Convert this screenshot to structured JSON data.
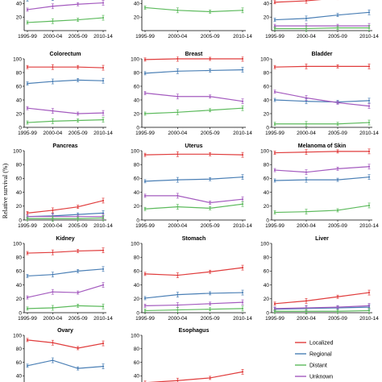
{
  "figure": {
    "ylabel": "Relative survival (%)",
    "colors": {
      "Localized": "#e03c3c",
      "Regional": "#4a7fb5",
      "Distant": "#5cba5c",
      "Unknown": "#a45bbf"
    }
  },
  "chart_data": [
    {
      "type": "line",
      "title": "",
      "categories": [
        "1995-99",
        "2000-04",
        "2005-09",
        "2010-14"
      ],
      "ylim": [
        0,
        50
      ],
      "yticks": [
        20,
        40
      ],
      "clip_top": true,
      "series": [
        {
          "name": "Regional",
          "values": [
            46,
            48,
            50,
            51
          ]
        },
        {
          "name": "Unknown",
          "values": [
            31,
            36,
            39,
            41
          ]
        },
        {
          "name": "Distant",
          "values": [
            12,
            14,
            16,
            19
          ]
        }
      ]
    },
    {
      "type": "line",
      "title": "",
      "categories": [
        "1995-99",
        "2000-04",
        "2005-09",
        "2010-14"
      ],
      "ylim": [
        0,
        50
      ],
      "yticks": [
        20,
        40
      ],
      "clip_top": true,
      "series": [
        {
          "name": "Distant",
          "values": [
            34,
            30,
            28,
            30
          ]
        }
      ]
    },
    {
      "type": "line",
      "title": "",
      "categories": [
        "1995-99",
        "2000-04",
        "2005-09",
        "2010-14"
      ],
      "ylim": [
        0,
        50
      ],
      "yticks": [
        20,
        40
      ],
      "clip_top": true,
      "series": [
        {
          "name": "Localized",
          "values": [
            42,
            44,
            48,
            53
          ]
        },
        {
          "name": "Regional",
          "values": [
            16,
            18,
            23,
            27
          ]
        },
        {
          "name": "Unknown",
          "values": [
            7,
            7,
            7,
            7
          ]
        },
        {
          "name": "Distant",
          "values": [
            3,
            3,
            4,
            4
          ]
        }
      ]
    },
    {
      "type": "line",
      "title": "Colorectum",
      "categories": [
        "1995-99",
        "2000-04",
        "2005-09",
        "2010-14"
      ],
      "ylim": [
        0,
        100
      ],
      "yticks": [
        0,
        20,
        40,
        60,
        80,
        100
      ],
      "series": [
        {
          "name": "Localized",
          "values": [
            88,
            88,
            88,
            87
          ]
        },
        {
          "name": "Regional",
          "values": [
            64,
            67,
            69,
            68
          ]
        },
        {
          "name": "Unknown",
          "values": [
            28,
            24,
            20,
            21
          ]
        },
        {
          "name": "Distant",
          "values": [
            7,
            9,
            10,
            11
          ]
        }
      ]
    },
    {
      "type": "line",
      "title": "Breast",
      "categories": [
        "1995-99",
        "2000-04",
        "2005-09",
        "2010-14"
      ],
      "ylim": [
        0,
        100
      ],
      "yticks": [
        0,
        20,
        40,
        60,
        80,
        100
      ],
      "series": [
        {
          "name": "Localized",
          "values": [
            99,
            100,
            100,
            100
          ]
        },
        {
          "name": "Regional",
          "values": [
            79,
            82,
            83,
            84
          ]
        },
        {
          "name": "Unknown",
          "values": [
            50,
            45,
            45,
            38
          ]
        },
        {
          "name": "Distant",
          "values": [
            20,
            22,
            25,
            28
          ]
        }
      ]
    },
    {
      "type": "line",
      "title": "Bladder",
      "categories": [
        "1995-99",
        "2000-04",
        "2005-09",
        "2010-14"
      ],
      "ylim": [
        0,
        100
      ],
      "yticks": [
        0,
        20,
        40,
        60,
        80,
        100
      ],
      "series": [
        {
          "name": "Localized",
          "values": [
            88,
            89,
            89,
            89
          ]
        },
        {
          "name": "Regional",
          "values": [
            40,
            38,
            37,
            39
          ]
        },
        {
          "name": "Unknown",
          "values": [
            52,
            43,
            36,
            31
          ]
        },
        {
          "name": "Distant",
          "values": [
            5,
            5,
            5,
            7
          ]
        }
      ]
    },
    {
      "type": "line",
      "title": "Pancreas",
      "categories": [
        "1995-99",
        "2000-04",
        "2005-09",
        "2010-14"
      ],
      "ylim": [
        0,
        100
      ],
      "yticks": [
        0,
        20,
        40,
        60,
        80,
        100
      ],
      "series": [
        {
          "name": "Localized",
          "values": [
            10,
            14,
            19,
            28
          ]
        },
        {
          "name": "Regional",
          "values": [
            5,
            6,
            8,
            10
          ]
        },
        {
          "name": "Unknown",
          "values": [
            5,
            5,
            5,
            5
          ]
        },
        {
          "name": "Distant",
          "values": [
            2,
            2,
            2,
            3
          ]
        }
      ]
    },
    {
      "type": "line",
      "title": "Uterus",
      "categories": [
        "1995-99",
        "2000-04",
        "2005-09",
        "2010-14"
      ],
      "ylim": [
        0,
        100
      ],
      "yticks": [
        0,
        20,
        40,
        60,
        80,
        100
      ],
      "series": [
        {
          "name": "Localized",
          "values": [
            94,
            95,
            95,
            94
          ]
        },
        {
          "name": "Regional",
          "values": [
            56,
            58,
            59,
            62
          ]
        },
        {
          "name": "Unknown",
          "values": [
            35,
            35,
            25,
            30
          ]
        },
        {
          "name": "Distant",
          "values": [
            16,
            19,
            17,
            23
          ]
        }
      ]
    },
    {
      "type": "line",
      "title": "Melanoma of Skin",
      "categories": [
        "1995-99",
        "2000-04",
        "2005-09",
        "2010-14"
      ],
      "ylim": [
        0,
        100
      ],
      "yticks": [
        0,
        20,
        40,
        60,
        80,
        100
      ],
      "series": [
        {
          "name": "Localized",
          "values": [
            97,
            98,
            99,
            99
          ]
        },
        {
          "name": "Regional",
          "values": [
            57,
            58,
            58,
            62
          ]
        },
        {
          "name": "Unknown",
          "values": [
            72,
            69,
            74,
            77
          ]
        },
        {
          "name": "Distant",
          "values": [
            11,
            12,
            14,
            21
          ]
        }
      ]
    },
    {
      "type": "line",
      "title": "Kidney",
      "categories": [
        "1995-99",
        "2000-04",
        "2005-09",
        "2010-14"
      ],
      "ylim": [
        0,
        100
      ],
      "yticks": [
        0,
        20,
        40,
        60,
        80,
        100
      ],
      "series": [
        {
          "name": "Localized",
          "values": [
            86,
            87,
            89,
            90
          ]
        },
        {
          "name": "Regional",
          "values": [
            53,
            55,
            60,
            63
          ]
        },
        {
          "name": "Unknown",
          "values": [
            22,
            30,
            29,
            40
          ]
        },
        {
          "name": "Distant",
          "values": [
            6,
            7,
            10,
            9
          ]
        }
      ]
    },
    {
      "type": "line",
      "title": "Stomach",
      "categories": [
        "1995-99",
        "2000-04",
        "2005-09",
        "2010-14"
      ],
      "ylim": [
        0,
        100
      ],
      "yticks": [
        0,
        20,
        40,
        60,
        80,
        100
      ],
      "series": [
        {
          "name": "Localized",
          "values": [
            56,
            54,
            59,
            65
          ]
        },
        {
          "name": "Regional",
          "values": [
            21,
            26,
            28,
            29
          ]
        },
        {
          "name": "Unknown",
          "values": [
            10,
            11,
            13,
            15
          ]
        },
        {
          "name": "Distant",
          "values": [
            3,
            4,
            5,
            6
          ]
        }
      ]
    },
    {
      "type": "line",
      "title": "Liver",
      "categories": [
        "1995-99",
        "2000-04",
        "2005-09",
        "2010-14"
      ],
      "ylim": [
        0,
        100
      ],
      "yticks": [
        0,
        20,
        40,
        60,
        80,
        100
      ],
      "series": [
        {
          "name": "Localized",
          "values": [
            13,
            17,
            23,
            29
          ]
        },
        {
          "name": "Regional",
          "values": [
            5,
            6,
            7,
            8
          ]
        },
        {
          "name": "Unknown",
          "values": [
            6,
            7,
            8,
            10
          ]
        },
        {
          "name": "Distant",
          "values": [
            2,
            2,
            2,
            3
          ]
        }
      ]
    },
    {
      "type": "line",
      "title": "Ovary",
      "categories": [
        "1995-99",
        "2000-04",
        "2005-09",
        "2010-14"
      ],
      "ylim": [
        0,
        100
      ],
      "yticks": [
        20,
        40,
        60,
        80,
        100
      ],
      "clip_bottom": true,
      "series": [
        {
          "name": "Localized",
          "values": [
            93,
            89,
            81,
            88
          ]
        },
        {
          "name": "Regional",
          "values": [
            55,
            63,
            51,
            54
          ]
        }
      ]
    },
    {
      "type": "line",
      "title": "Esophagus",
      "categories": [
        "1995-99",
        "2000-04",
        "2005-09",
        "2010-14"
      ],
      "ylim": [
        0,
        100
      ],
      "yticks": [
        20,
        40,
        60,
        80,
        100
      ],
      "clip_bottom": true,
      "series": [
        {
          "name": "Localized",
          "values": [
            30,
            33,
            37,
            46
          ]
        }
      ]
    }
  ],
  "legend": {
    "entries": [
      "Localized",
      "Regional",
      "Distant",
      "Unknown"
    ]
  }
}
